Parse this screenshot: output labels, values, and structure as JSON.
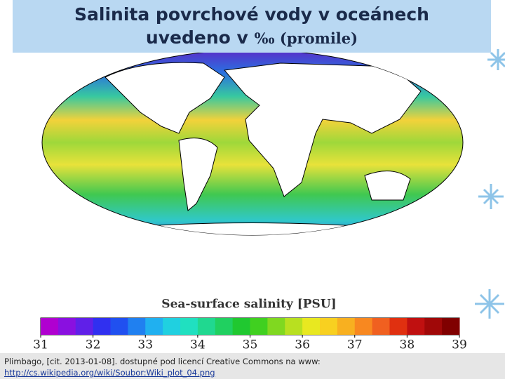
{
  "title": [
    "Salinita povrchové vody v oceánech",
    "uvedeno v",
    "‰ (promile)"
  ],
  "colorbar": {
    "title": "Sea-surface salinity [PSU]",
    "ticks": [
      31,
      32,
      33,
      34,
      35,
      36,
      37,
      38,
      39
    ],
    "colors": [
      "#b000d0",
      "#8a10e0",
      "#6020e8",
      "#3030f0",
      "#2050f0",
      "#2080f0",
      "#20b0f0",
      "#20d0e0",
      "#20e0c0",
      "#20d890",
      "#20d060",
      "#20c830",
      "#40d020",
      "#80d820",
      "#b8e020",
      "#e8e820",
      "#f8d020",
      "#f8b020",
      "#f88820",
      "#f06020",
      "#e03010",
      "#c01010",
      "#a00808",
      "#800000"
    ]
  },
  "caption": {
    "text": "Plimbago, [cit. 2013-01-08]. dostupné  pod licencí Creative Commons na www:",
    "link": "http://cs.wikipedia.org/wiki/Soubor:Wiki_plot_04.png"
  }
}
